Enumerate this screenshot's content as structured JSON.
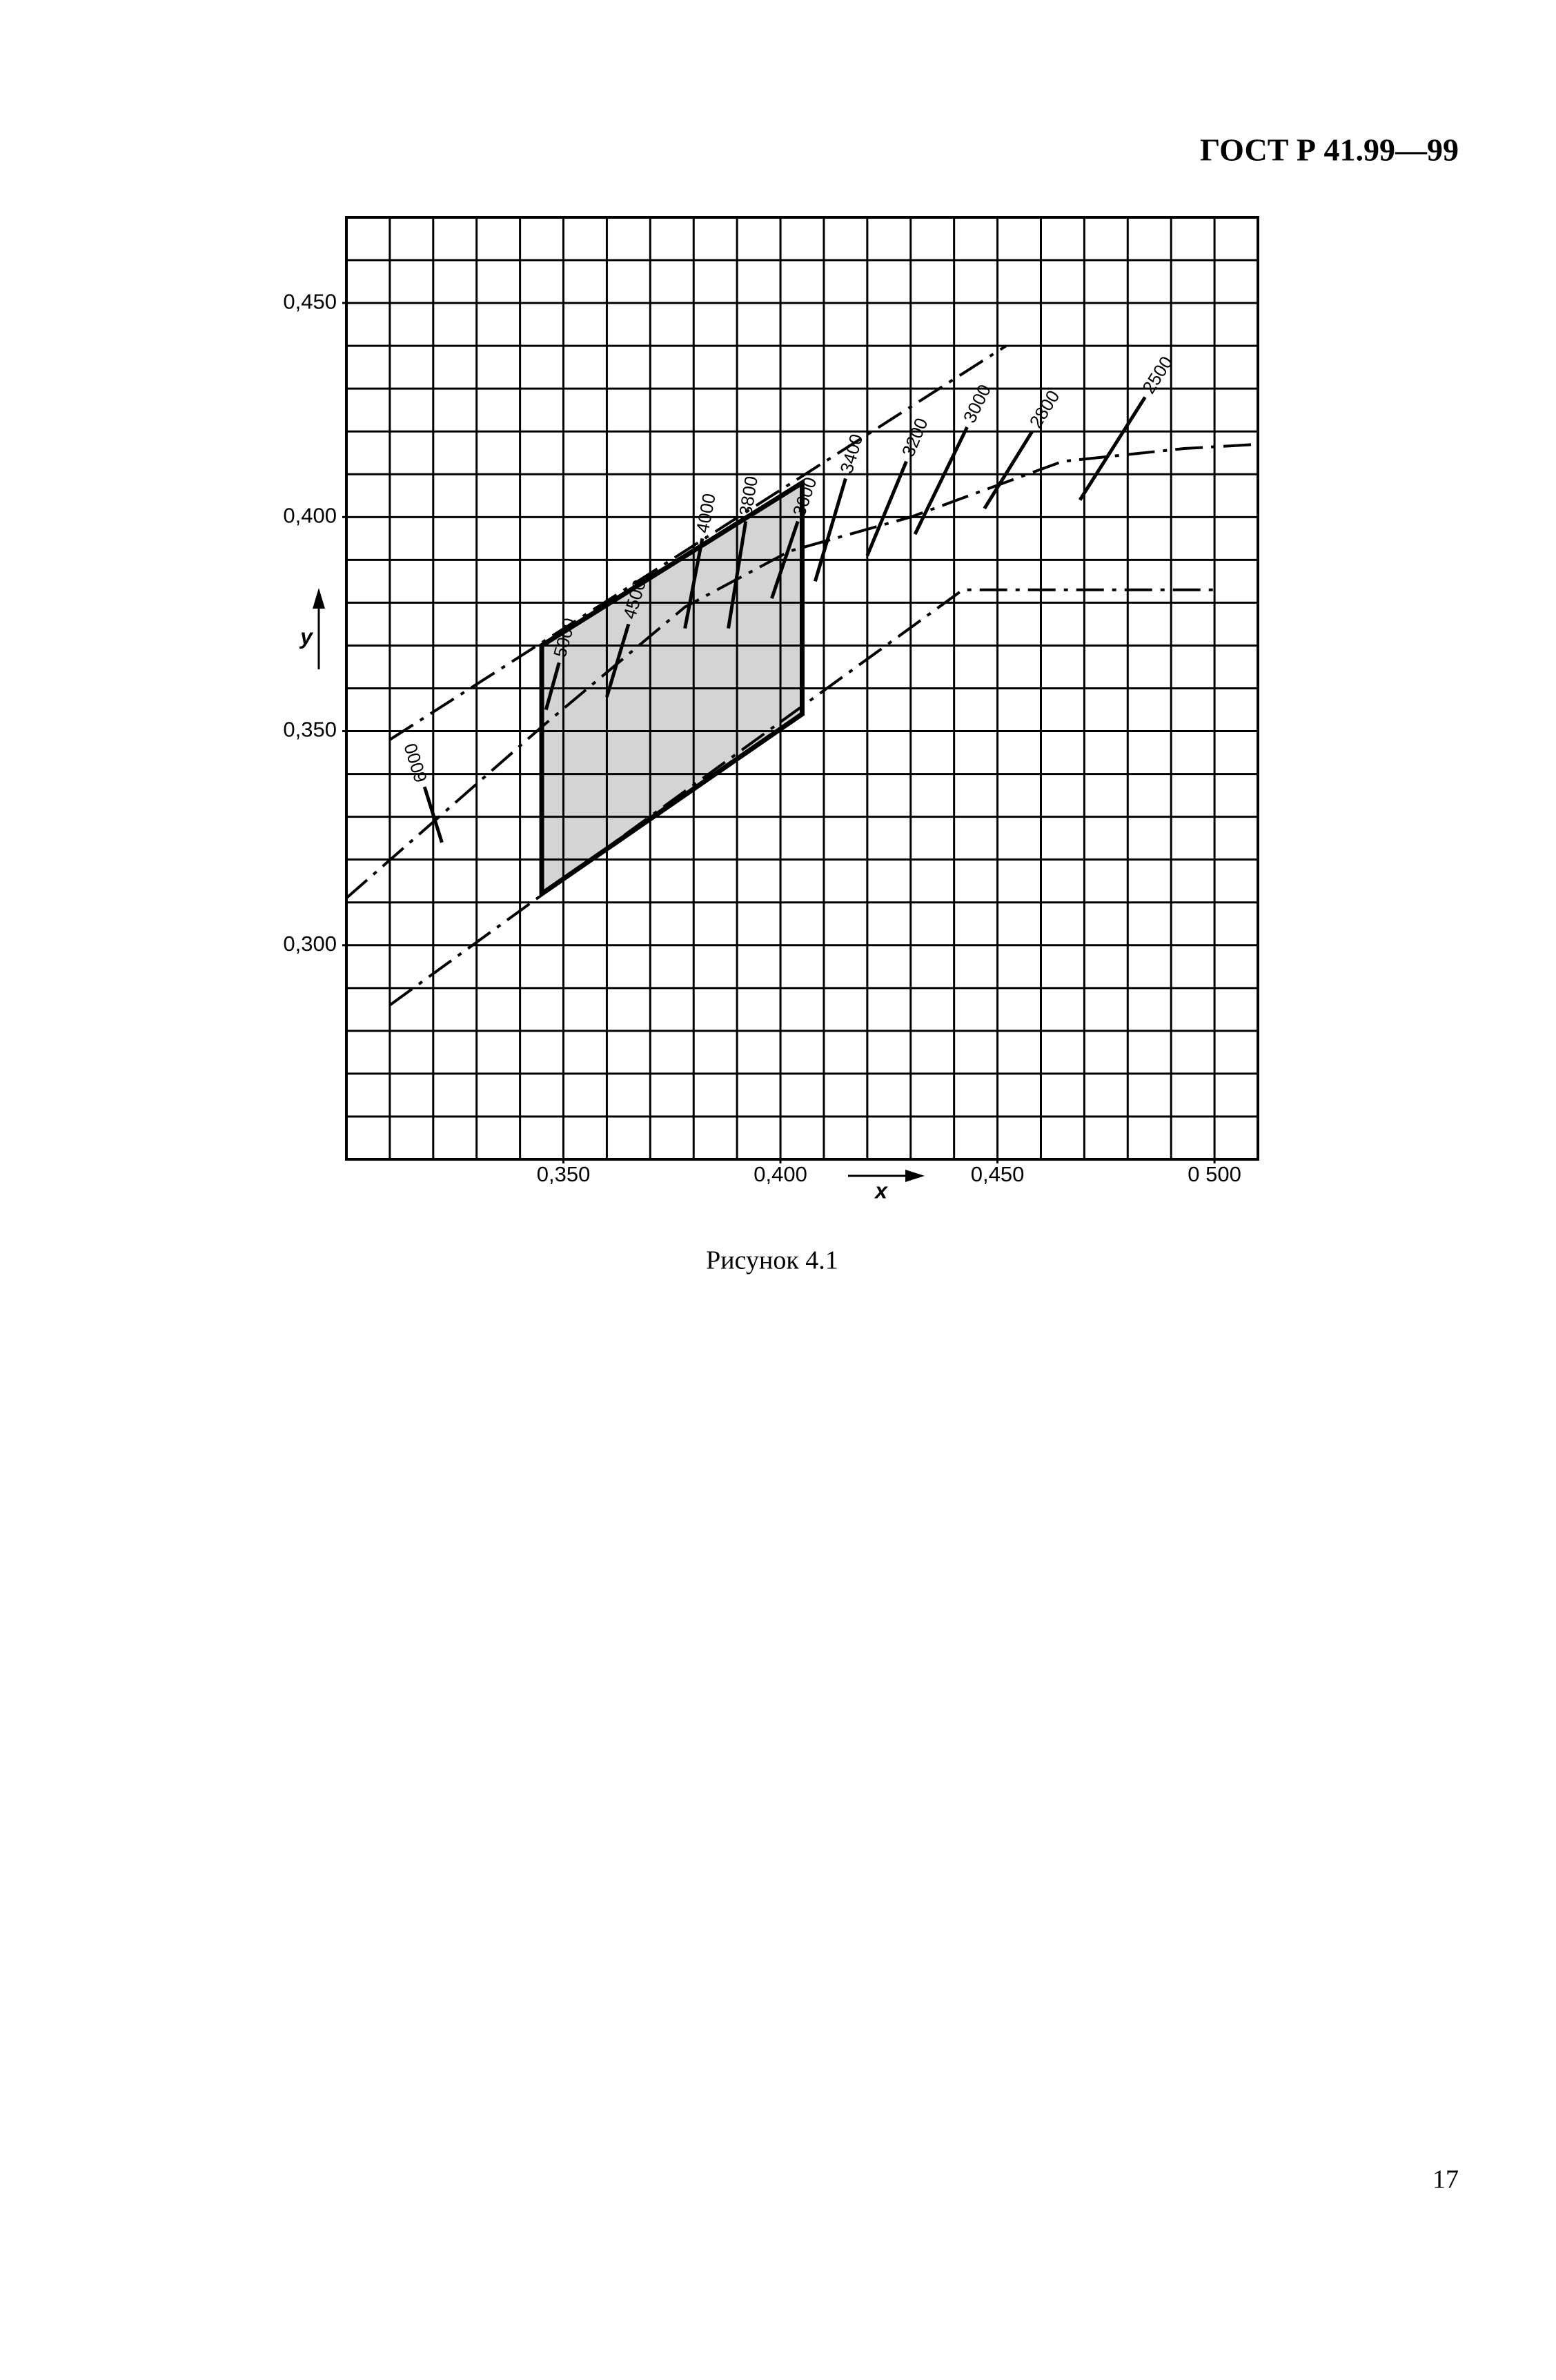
{
  "header": "ГОСТ Р 41.99—99",
  "chart_data": {
    "type": "line",
    "x_label": "x",
    "y_label": "y",
    "xlim": [
      0.3,
      0.51
    ],
    "ylim": [
      0.25,
      0.47
    ],
    "xticks": [
      {
        "value": 0.35,
        "label": "0,350"
      },
      {
        "value": 0.4,
        "label": "0,400"
      },
      {
        "value": 0.45,
        "label": "0,450"
      },
      {
        "value": 0.5,
        "label": "0 500"
      }
    ],
    "yticks": [
      {
        "value": 0.3,
        "label": "0,300"
      },
      {
        "value": 0.35,
        "label": "0,350"
      },
      {
        "value": 0.4,
        "label": "0,400"
      },
      {
        "value": 0.45,
        "label": "0,450"
      }
    ],
    "grid": true,
    "x_grid": [
      0.3,
      0.31,
      0.32,
      0.33,
      0.34,
      0.35,
      0.36,
      0.37,
      0.38,
      0.39,
      0.4,
      0.41,
      0.42,
      0.43,
      0.44,
      0.45,
      0.46,
      0.47,
      0.48,
      0.49,
      0.5,
      0.51
    ],
    "y_grid": [
      0.25,
      0.26,
      0.27,
      0.28,
      0.29,
      0.3,
      0.31,
      0.32,
      0.33,
      0.34,
      0.35,
      0.36,
      0.37,
      0.38,
      0.39,
      0.4,
      0.41,
      0.42,
      0.43,
      0.44,
      0.45,
      0.46,
      0.47
    ],
    "color": "#000000",
    "series": [
      {
        "x": [
          0.31,
          0.452
        ],
        "values": [
          0.348,
          0.44
        ],
        "style": "dash-dot"
      },
      {
        "x": [
          0.3,
          0.345,
          0.378,
          0.402,
          0.43,
          0.465,
          0.493,
          0.51
        ],
        "values": [
          0.311,
          0.351,
          0.379,
          0.392,
          0.4,
          0.413,
          0.416,
          0.417
        ],
        "style": "dash-dot"
      },
      {
        "x": [
          0.31,
          0.442,
          0.5
        ],
        "values": [
          0.286,
          0.383,
          0.383
        ],
        "style": "dash-dot"
      }
    ],
    "region": {
      "x": [
        0.345,
        0.345,
        0.405,
        0.405
      ],
      "y": [
        0.312,
        0.37,
        0.408,
        0.354
      ],
      "fill": "#d4d4d4"
    },
    "annotations": [
      {
        "text": "6000",
        "x": [
          0.322,
          0.318
        ],
        "y": [
          0.324,
          0.337
        ]
      },
      {
        "text": "5000",
        "x": [
          0.346,
          0.349
        ],
        "y": [
          0.355,
          0.366
        ]
      },
      {
        "text": "4500",
        "x": [
          0.36,
          0.365
        ],
        "y": [
          0.358,
          0.375
        ]
      },
      {
        "text": "4000",
        "x": [
          0.378,
          0.382
        ],
        "y": [
          0.374,
          0.395
        ]
      },
      {
        "text": "3800",
        "x": [
          0.388,
          0.392
        ],
        "y": [
          0.374,
          0.399
        ]
      },
      {
        "text": "3600",
        "x": [
          0.398,
          0.404
        ],
        "y": [
          0.381,
          0.399
        ]
      },
      {
        "text": "3400",
        "x": [
          0.408,
          0.415
        ],
        "y": [
          0.385,
          0.409
        ]
      },
      {
        "text": "3200",
        "x": [
          0.42,
          0.429
        ],
        "y": [
          0.391,
          0.413
        ]
      },
      {
        "text": "3000",
        "x": [
          0.431,
          0.443
        ],
        "y": [
          0.396,
          0.421
        ]
      },
      {
        "text": "2800",
        "x": [
          0.447,
          0.458
        ],
        "y": [
          0.402,
          0.42
        ]
      },
      {
        "text": "2500",
        "x": [
          0.469,
          0.484
        ],
        "y": [
          0.404,
          0.428
        ]
      }
    ]
  },
  "caption": "Рисунок 4.1",
  "page_number": "17"
}
